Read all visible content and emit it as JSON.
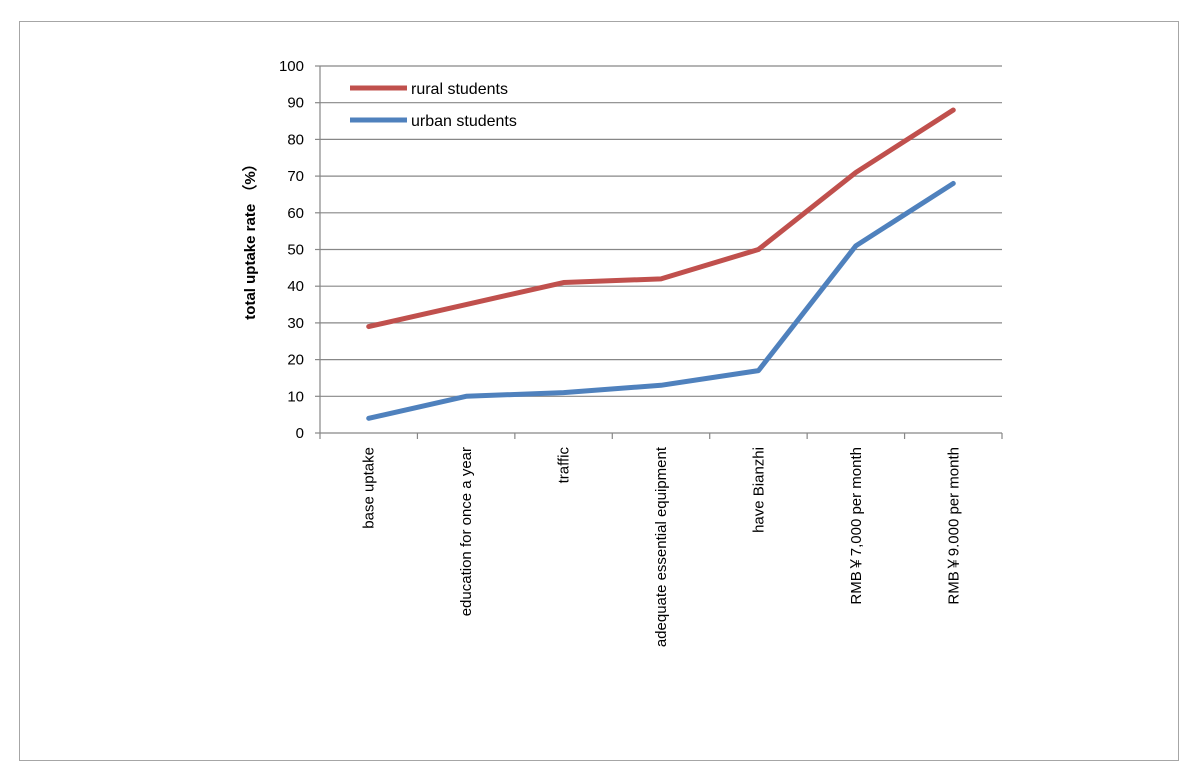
{
  "chart_data": {
    "type": "line",
    "title": "",
    "xlabel": "",
    "ylabel": "total uptake rate （%）",
    "ylim": [
      0,
      100
    ],
    "yticks": [
      0,
      10,
      20,
      30,
      40,
      50,
      60,
      70,
      80,
      90,
      100
    ],
    "grid": "horizontal",
    "legend_position": "top-left",
    "categories": [
      "base uptake",
      "education for once a year",
      "traffic",
      "adequate essential equipment",
      "have Bianzhi",
      "RMB￥7,000 per month",
      "RMB￥9.000 per month"
    ],
    "series": [
      {
        "name": "rural students",
        "color": "#c0504d",
        "values": [
          29,
          35,
          41,
          42,
          50,
          71,
          88
        ]
      },
      {
        "name": "urban students",
        "color": "#4f81bd",
        "values": [
          4,
          10,
          11,
          13,
          17,
          51,
          68
        ]
      }
    ]
  }
}
